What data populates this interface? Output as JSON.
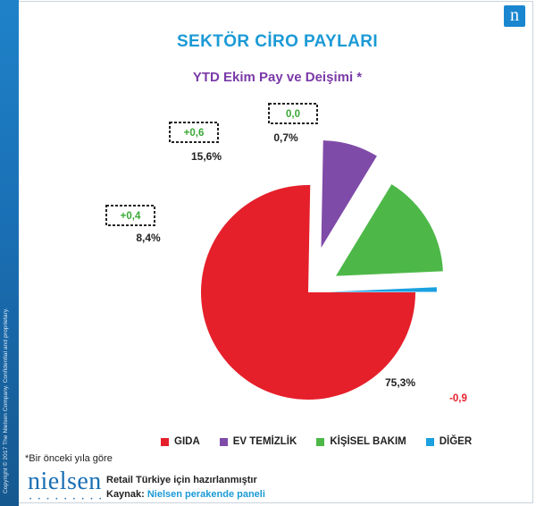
{
  "brand": {
    "logo_letter": "n",
    "wordmark": "nielsen",
    "dots": "• • • • • • • • •",
    "side_text": "Copyright © 2017 The Nielsen Company. Confidential and proprietary."
  },
  "footnote": "*Bir önceki yıla göre",
  "footer": {
    "line1": "Retail Türkiye için hazırlanmıştır",
    "source_label": "Kaynak:",
    "source_value": "Nielsen perakende paneli"
  },
  "colors": {
    "title": "#1b9ad6",
    "subtitle": "#7a3aa8",
    "change_positive": "#3aa935",
    "change_negative": "#e5202b"
  },
  "chart_data": {
    "type": "pie",
    "title": "SEKTÖR CİRO PAYLARI",
    "subtitle": "YTD Ekim Pay ve Deişimi *",
    "unit": "%",
    "slices": [
      {
        "name": "GIDA",
        "value": 75.3,
        "label": "75,3%",
        "change": "-0,9",
        "change_sign": "negative",
        "color": "#e5202b",
        "exploded": false
      },
      {
        "name": "EV TEMİZLİK",
        "value": 8.4,
        "label": "8,4%",
        "change": "+0,4",
        "change_sign": "positive",
        "color": "#7f4ba8",
        "exploded": true
      },
      {
        "name": "KİŞİSEL BAKIM",
        "value": 15.6,
        "label": "15,6%",
        "change": "+0,6",
        "change_sign": "positive",
        "color": "#4db848",
        "exploded": true
      },
      {
        "name": "DİĞER",
        "value": 0.7,
        "label": "0,7%",
        "change": "0,0",
        "change_sign": "positive",
        "color": "#1ba0e0",
        "exploded": true
      }
    ],
    "legend_position": "bottom"
  }
}
